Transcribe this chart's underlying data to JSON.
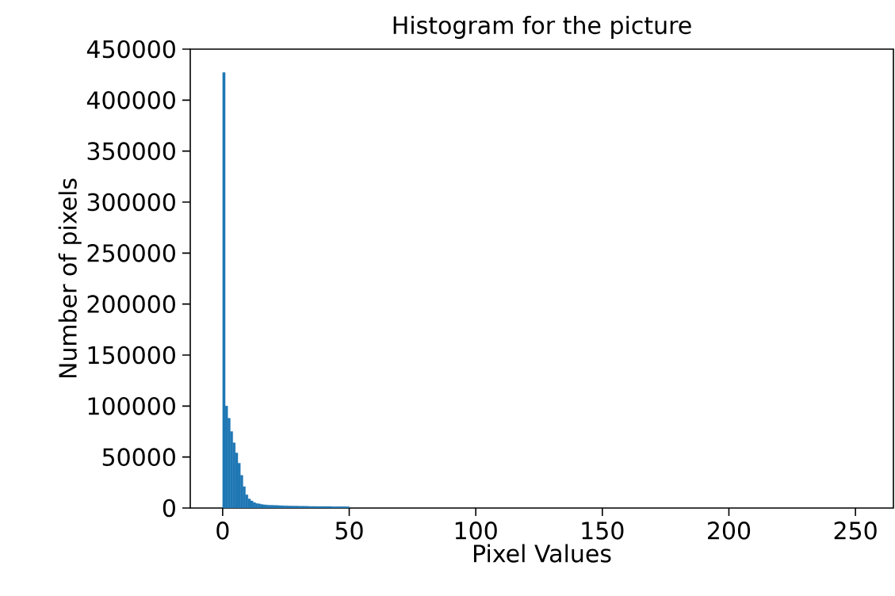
{
  "chart_data": {
    "type": "histogram",
    "title": "Histogram for the picture",
    "xlabel": "Pixel Values",
    "ylabel": "Number of pixels",
    "bins": [
      0,
      1,
      2,
      3,
      4,
      5,
      6,
      7,
      8,
      9,
      10,
      11,
      12,
      13,
      14,
      15,
      16,
      17,
      18,
      19,
      20,
      21,
      22,
      23,
      24,
      25,
      26,
      27,
      28,
      29,
      30,
      31,
      32,
      33,
      34,
      35,
      36,
      37,
      38,
      39,
      40,
      41,
      42,
      43,
      44,
      45,
      46,
      47,
      48,
      49,
      50
    ],
    "values": [
      427000,
      100000,
      88000,
      75000,
      64000,
      54000,
      44000,
      32000,
      21000,
      13000,
      9000,
      7000,
      5500,
      4500,
      4000,
      3500,
      3200,
      3000,
      2800,
      2700,
      2600,
      2500,
      2400,
      2300,
      2200,
      2100,
      2000,
      2000,
      1900,
      1900,
      1800,
      1800,
      1700,
      1700,
      1600,
      1600,
      1600,
      1500,
      1500,
      1500,
      1500,
      1500,
      1500,
      1400,
      1400,
      1400,
      1400,
      1400,
      1400,
      1400
    ],
    "color": "#1f77b4",
    "xlim": [
      -12.8,
      265
    ],
    "ylim": [
      0,
      450000
    ],
    "xticks": [
      0,
      50,
      100,
      150,
      200,
      250
    ],
    "yticks": [
      0,
      50000,
      100000,
      150000,
      200000,
      250000,
      300000,
      350000,
      400000,
      450000
    ]
  }
}
